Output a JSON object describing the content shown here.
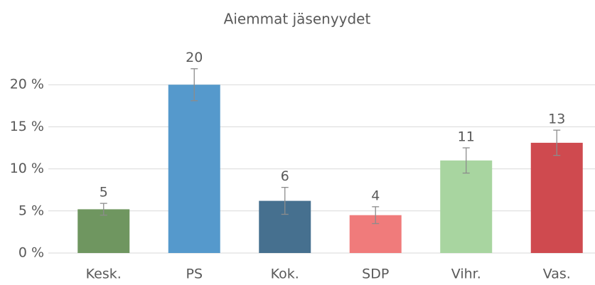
{
  "chart_data": {
    "type": "bar",
    "title": "Aiemmat jäsenyydet",
    "categories": [
      "Kesk.",
      "PS",
      "Kok.",
      "SDP",
      "Vihr.",
      "Vas."
    ],
    "values": [
      5.2,
      20,
      6.2,
      4.5,
      11,
      13.1
    ],
    "value_labels": [
      "5",
      "20",
      "6",
      "4",
      "11",
      "13"
    ],
    "errors": [
      0.7,
      1.9,
      1.6,
      1.0,
      1.5,
      1.5
    ],
    "colors": [
      "#6f9660",
      "#5599cc",
      "#46708f",
      "#f07b7b",
      "#a8d5a0",
      "#cf4a4f"
    ],
    "ylim": [
      0,
      25
    ],
    "yticks": [
      {
        "value": 0,
        "label": "0 %"
      },
      {
        "value": 5,
        "label": "5 %"
      },
      {
        "value": 10,
        "label": "10 %"
      },
      {
        "value": 15,
        "label": "15 %"
      },
      {
        "value": 20,
        "label": "20 %"
      }
    ],
    "grid": true
  }
}
